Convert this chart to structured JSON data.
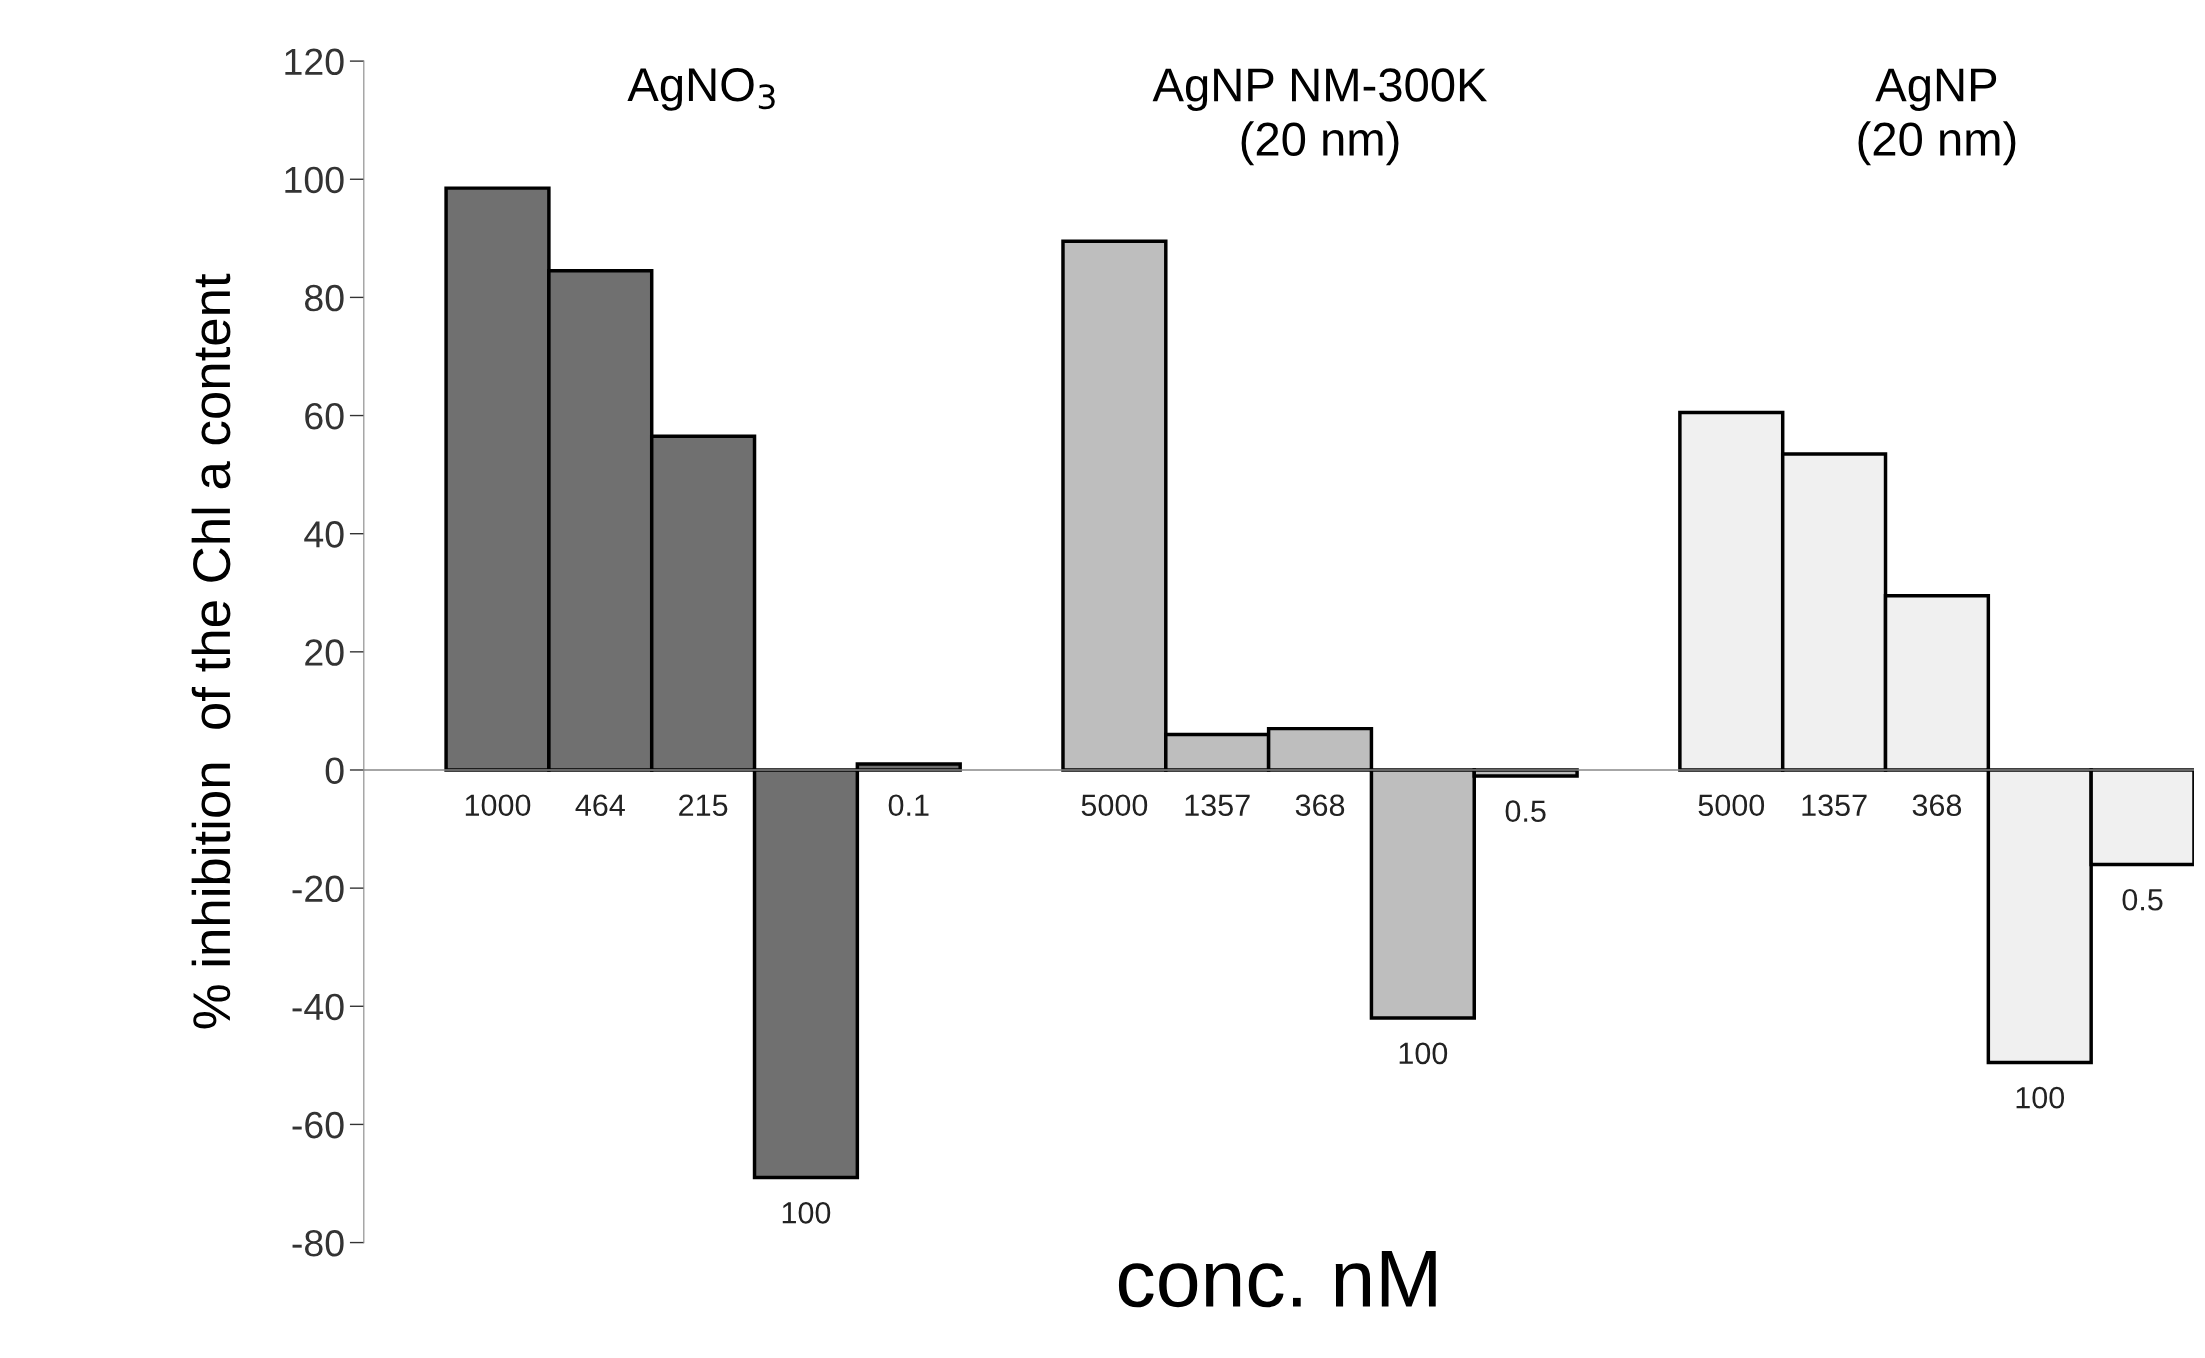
{
  "chart_data": {
    "type": "bar",
    "categories": [
      "1000",
      "464",
      "215",
      "100",
      "0.1",
      null,
      "5000",
      "1357",
      "368",
      "100",
      "0.5",
      null,
      "5000",
      "1357",
      "368",
      "100",
      "0.5"
    ],
    "values": [
      98.5,
      84.5,
      56.5,
      -69,
      1,
      null,
      89.5,
      6,
      7,
      -42,
      -1,
      null,
      60.5,
      53.5,
      29.5,
      -49.5,
      -16
    ],
    "colors": [
      "#707070",
      "#707070",
      "#707070",
      "#707070",
      "#707070",
      null,
      "#bebebe",
      "#bebebe",
      "#bebebe",
      "#bebebe",
      "#bebebe",
      null,
      "#f0f0f0",
      "#f0f0f0",
      "#f0f0f0",
      "#f0f0f0",
      "#f0f0f0"
    ],
    "xlabel": "conc. nM",
    "ylabel": "% inhibition  of the Chl a content",
    "ylim": [
      -80,
      120
    ],
    "yticks": [
      -80,
      -60,
      -40,
      -20,
      0,
      20,
      40,
      60,
      80,
      100,
      120
    ],
    "grid": false,
    "legend": false,
    "annotations": [
      "AgNO$_{3}$",
      "AgNP NM-300K\n(20 nm)",
      "AgNP\n(20 nm)"
    ]
  }
}
